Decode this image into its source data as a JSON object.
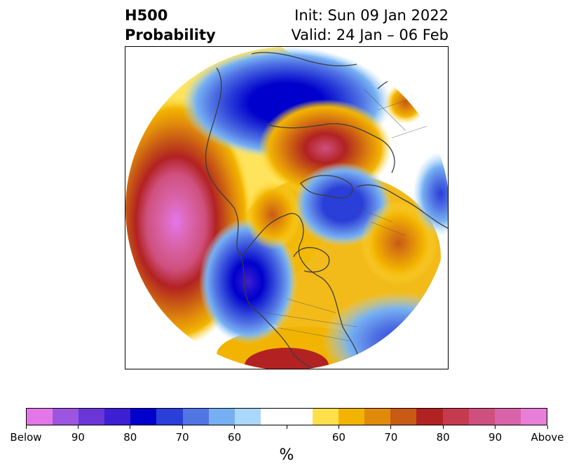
{
  "title": {
    "left_line1": "H500",
    "left_line2": "Probability",
    "right_line1": "Init: Sun 09 Jan 2022",
    "right_line2": "Valid: 24 Jan – 06 Feb"
  },
  "colorbar": {
    "label": "%",
    "colors": [
      "#e377e8",
      "#9c55e0",
      "#6a36d8",
      "#3d1fd4",
      "#0000cc",
      "#2a3ed8",
      "#5275e4",
      "#76b0f2",
      "#aad8fa",
      "#ffffff",
      "#ffffff",
      "#ffe04a",
      "#f2b400",
      "#e08a0c",
      "#c85a14",
      "#b22222",
      "#c63a50",
      "#cf507e",
      "#d963a8",
      "#e77ed8"
    ],
    "ticks": [
      "Below",
      "90",
      "80",
      "70",
      "60",
      "",
      "60",
      "70",
      "80",
      "90",
      "Above"
    ]
  },
  "map": {
    "projection": "north-polar-stereographic",
    "anomaly_regions": [
      {
        "label": "above",
        "level": 90,
        "location": "north-central Pacific"
      },
      {
        "label": "below",
        "level": 80,
        "location": "Gulf of Alaska / western Canada"
      },
      {
        "label": "below",
        "level": 80,
        "location": "central Asia / Siberia"
      },
      {
        "label": "above",
        "level": 80,
        "location": "Scandinavia / northern Europe"
      },
      {
        "label": "below",
        "level": 80,
        "location": "Greenland / Baffin Bay"
      },
      {
        "label": "above",
        "level": 70,
        "location": "eastern US / north Atlantic"
      },
      {
        "label": "below",
        "level": 70,
        "location": "central Atlantic"
      }
    ]
  }
}
